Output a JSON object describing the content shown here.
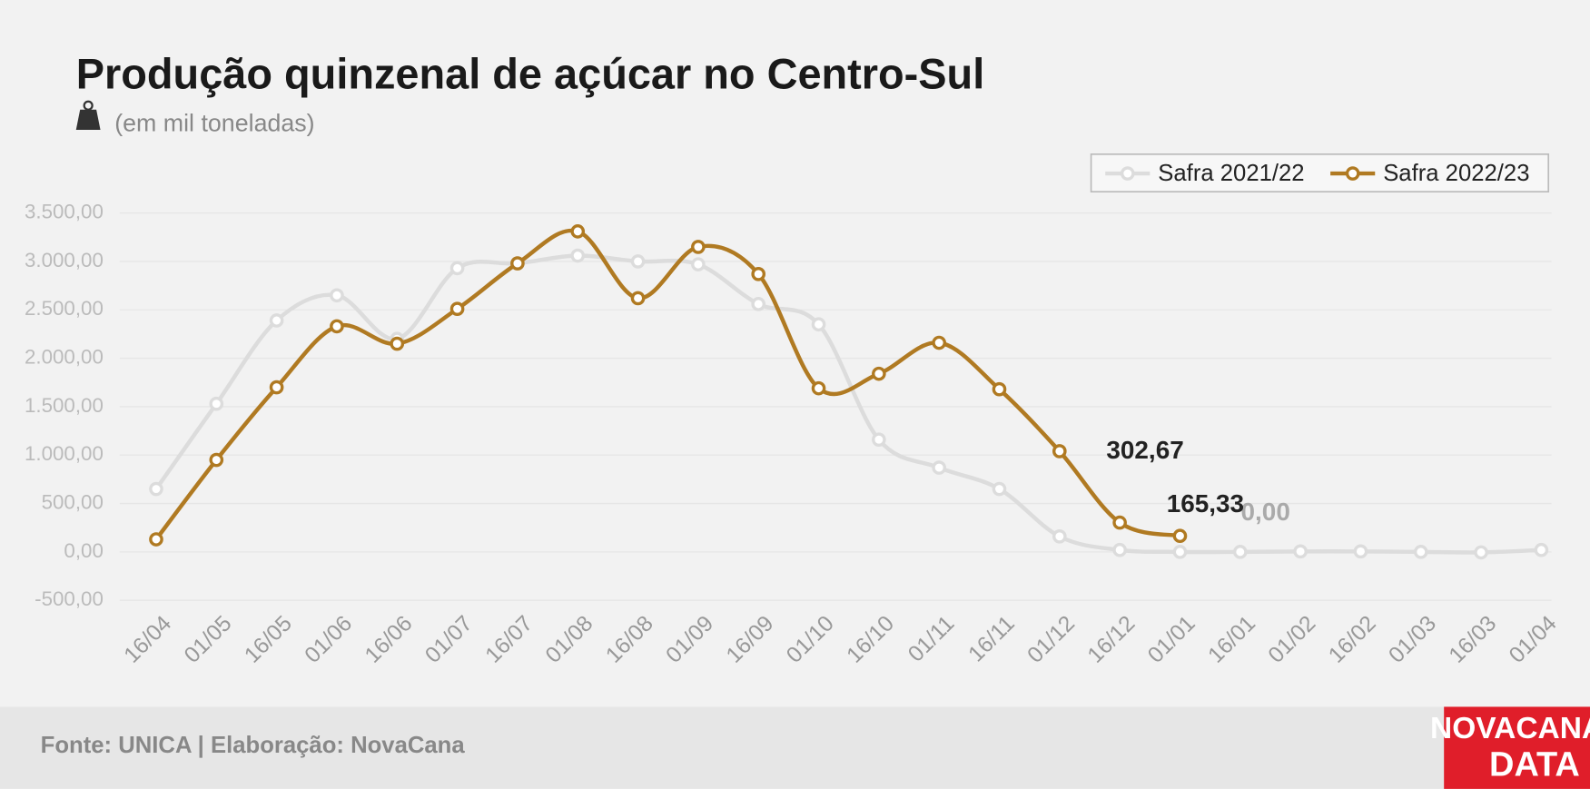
{
  "chart_data": {
    "type": "line",
    "title": "Produção quinzenal de açúcar no Centro-Sul",
    "subtitle": "(em mil toneladas)",
    "source": "Fonte: UNICA | Elaboração: NovaCana",
    "logo": [
      "NOVACANA",
      "DATA"
    ],
    "categories": [
      "16/04",
      "01/05",
      "16/05",
      "01/06",
      "16/06",
      "01/07",
      "16/07",
      "01/08",
      "16/08",
      "01/09",
      "16/09",
      "01/10",
      "16/10",
      "01/11",
      "16/11",
      "01/12",
      "16/12",
      "01/01",
      "16/01",
      "01/02",
      "16/02",
      "01/03",
      "16/03",
      "01/04"
    ],
    "series": [
      {
        "name": "Safra 2021/22",
        "color": "#dcdcdc",
        "label_color": "#aaaaaa",
        "values": [
          650,
          1530,
          2390,
          2650,
          2200,
          2930,
          2980,
          3060,
          3000,
          2970,
          2560,
          2350,
          1160,
          870,
          650,
          160,
          20,
          0,
          0,
          5,
          5,
          0,
          -5,
          20
        ],
        "value_labels": [
          null,
          null,
          null,
          null,
          null,
          null,
          null,
          null,
          null,
          null,
          null,
          null,
          null,
          null,
          null,
          null,
          null,
          null,
          "0,00",
          null,
          null,
          null,
          null,
          null
        ]
      },
      {
        "name": "Safra 2022/23",
        "color": "#b07a22",
        "label_color": "#222222",
        "values": [
          130,
          950,
          1700,
          2330,
          2150,
          2510,
          2980,
          3310,
          2620,
          3150,
          2870,
          1690,
          1840,
          2160,
          1680,
          1040,
          302.67,
          165.33,
          null,
          null,
          null,
          null,
          null,
          null
        ],
        "value_labels": [
          null,
          null,
          null,
          null,
          null,
          null,
          null,
          null,
          null,
          null,
          null,
          null,
          null,
          null,
          null,
          null,
          "302,67",
          "165,33",
          null,
          null,
          null,
          null,
          null,
          null
        ]
      }
    ],
    "ylim": [
      -500,
      3500
    ],
    "yticks": [
      {
        "value": -500,
        "label": "-500,00"
      },
      {
        "value": 0,
        "label": "0,00"
      },
      {
        "value": 500,
        "label": "500,00"
      },
      {
        "value": 1000,
        "label": "1.000,00"
      },
      {
        "value": 1500,
        "label": "1.500,00"
      },
      {
        "value": 2000,
        "label": "2.000,00"
      },
      {
        "value": 2500,
        "label": "2.500,00"
      },
      {
        "value": 3000,
        "label": "3.000,00"
      },
      {
        "value": 3500,
        "label": "3.500,00"
      }
    ],
    "grid": true,
    "legend": "top-right"
  }
}
